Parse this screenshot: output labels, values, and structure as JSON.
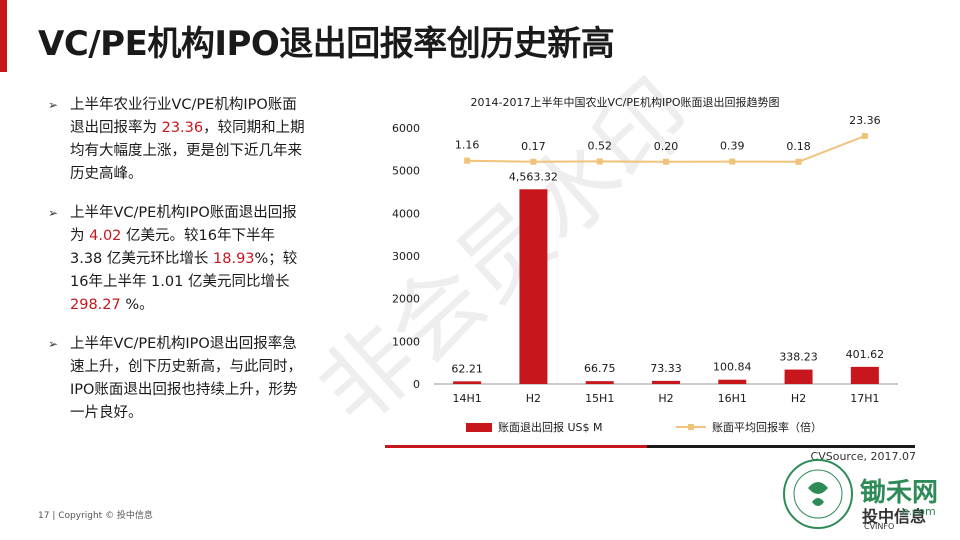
{
  "slide": {
    "title": "VC/PE机构IPO退出回报率创历史新高",
    "footer_page": "17",
    "footer_text": "Copyright © 投中信息",
    "watermark": "非会员水印",
    "source": "CVSource, 2017.07"
  },
  "bullets": [
    {
      "parts": [
        {
          "text": "上半年农业行业VC/PE机构IPO账面退出回报率为 ",
          "hl": false
        },
        {
          "text": "23.36",
          "hl": true
        },
        {
          "text": "，较同期和上期均有大幅度上涨，更是创下近几年来历史高峰。",
          "hl": false
        }
      ]
    },
    {
      "parts": [
        {
          "text": "上半年VC/PE机构IPO账面退出回报为 ",
          "hl": false
        },
        {
          "text": "4.02",
          "hl": true
        },
        {
          "text": " 亿美元。较16年下半年 3.38 亿美元环比增长 ",
          "hl": false
        },
        {
          "text": "18.93",
          "hl": true
        },
        {
          "text": "%；较16年上半年 1.01 亿美元同比增长 ",
          "hl": false
        },
        {
          "text": "298.27",
          "hl": true
        },
        {
          "text": " %。",
          "hl": false
        }
      ]
    },
    {
      "parts": [
        {
          "text": "上半年VC/PE机构IPO退出回报率急速上升，创下历史新高，与此同时， IPO账面退出回报也持续上升，形势一片良好。",
          "hl": false
        }
      ]
    }
  ],
  "logo": {
    "cn": "锄禾网",
    "sub": "投中信息",
    "en": "CVINFO",
    "url": "e.com",
    "ring_text": "CHINA MEANS ORGANIC"
  },
  "chart_data": {
    "type": "bar",
    "title": "2014-2017上半年中国农业VC/PE机构IPO账面退出回报趋势图",
    "categories": [
      "14H1",
      "H2",
      "15H1",
      "H2",
      "16H1",
      "H2",
      "17H1"
    ],
    "series": [
      {
        "name": "账面退出回报 US$ M",
        "type": "bar",
        "values": [
          62.21,
          4563.32,
          66.75,
          73.33,
          100.84,
          338.23,
          401.62
        ],
        "labels": [
          "62.21",
          "4,563.32",
          "66.75",
          "73.33",
          "100.84",
          "338.23",
          "401.62"
        ],
        "color": "#c8161d"
      },
      {
        "name": "账面平均回报率（倍）",
        "type": "line",
        "values": [
          1.16,
          0.17,
          0.52,
          0.2,
          0.39,
          0.18,
          23.36
        ],
        "labels": [
          "1.16",
          "0.17",
          "0.52",
          "0.20",
          "0.39",
          "0.18",
          "23.36"
        ],
        "color": "#f0c27a"
      }
    ],
    "yticks": [
      "0",
      "1000",
      "2000",
      "3000",
      "4000",
      "5000",
      "6000"
    ],
    "ylim": [
      0,
      6000
    ],
    "grid": false,
    "legend_position": "bottom"
  }
}
